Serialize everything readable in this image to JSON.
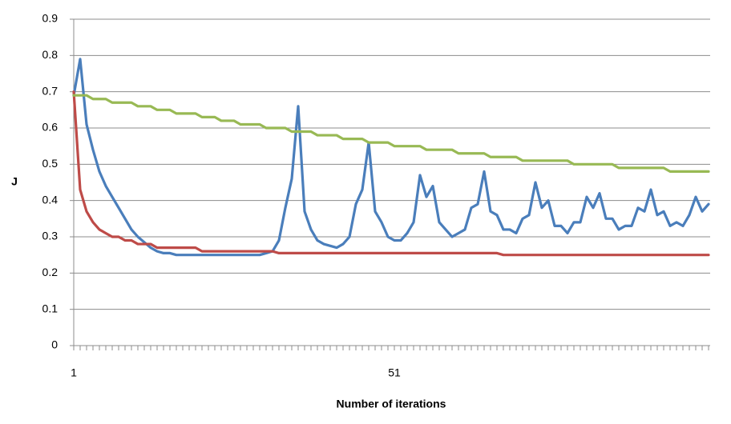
{
  "chart_data": {
    "type": "line",
    "ylabel": "J",
    "xlabel": "Number of iterations",
    "categories": [
      "1",
      null,
      null,
      null,
      null,
      null,
      null,
      null,
      null,
      null,
      null,
      null,
      null,
      null,
      null,
      null,
      null,
      null,
      null,
      null,
      null,
      null,
      null,
      null,
      null,
      null,
      null,
      null,
      null,
      null,
      null,
      null,
      null,
      null,
      null,
      null,
      null,
      null,
      null,
      null,
      null,
      null,
      null,
      null,
      null,
      null,
      null,
      null,
      null,
      null,
      "51",
      null,
      null,
      null,
      null,
      null,
      null,
      null,
      null,
      null,
      null,
      null,
      null,
      null,
      null,
      null,
      null,
      null,
      null,
      null,
      null,
      null,
      null,
      null,
      null,
      null,
      null,
      null,
      null,
      null,
      null,
      null,
      null,
      null,
      null,
      null,
      null,
      null,
      null,
      null,
      null,
      null,
      null,
      null,
      null,
      null,
      null,
      null,
      null,
      null
    ],
    "ylim": [
      0,
      0.9
    ],
    "yticks": [
      0,
      0.1,
      0.2,
      0.3,
      0.4,
      0.5,
      0.6,
      0.7,
      0.8,
      0.9
    ],
    "grid": true,
    "series": [
      {
        "color": "#4a7ebb",
        "values": [
          0.69,
          0.79,
          0.61,
          0.54,
          0.48,
          0.44,
          0.41,
          0.38,
          0.35,
          0.32,
          0.3,
          0.285,
          0.27,
          0.26,
          0.255,
          0.255,
          0.25,
          0.25,
          0.25,
          0.25,
          0.25,
          0.25,
          0.25,
          0.25,
          0.25,
          0.25,
          0.25,
          0.25,
          0.25,
          0.25,
          0.255,
          0.26,
          0.29,
          0.38,
          0.46,
          0.66,
          0.37,
          0.32,
          0.29,
          0.28,
          0.275,
          0.27,
          0.28,
          0.3,
          0.39,
          0.43,
          0.56,
          0.37,
          0.34,
          0.3,
          0.29,
          0.29,
          0.31,
          0.34,
          0.47,
          0.41,
          0.44,
          0.34,
          0.32,
          0.3,
          0.31,
          0.32,
          0.38,
          0.39,
          0.48,
          0.37,
          0.36,
          0.32,
          0.32,
          0.31,
          0.35,
          0.36,
          0.45,
          0.38,
          0.4,
          0.33,
          0.33,
          0.31,
          0.34,
          0.34,
          0.41,
          0.38,
          0.42,
          0.35,
          0.35,
          0.32,
          0.33,
          0.33,
          0.38,
          0.37,
          0.43,
          0.36,
          0.37,
          0.33,
          0.34,
          0.33,
          0.36,
          0.41,
          0.37,
          0.39
        ]
      },
      {
        "color": "#be4b48",
        "values": [
          0.7,
          0.43,
          0.37,
          0.34,
          0.32,
          0.31,
          0.3,
          0.3,
          0.29,
          0.29,
          0.28,
          0.28,
          0.28,
          0.27,
          0.27,
          0.27,
          0.27,
          0.27,
          0.27,
          0.27,
          0.26,
          0.26,
          0.26,
          0.26,
          0.26,
          0.26,
          0.26,
          0.26,
          0.26,
          0.26,
          0.26,
          0.26,
          0.255,
          0.255,
          0.255,
          0.255,
          0.255,
          0.255,
          0.255,
          0.255,
          0.255,
          0.255,
          0.255,
          0.255,
          0.255,
          0.255,
          0.255,
          0.255,
          0.255,
          0.255,
          0.255,
          0.255,
          0.255,
          0.255,
          0.255,
          0.255,
          0.255,
          0.255,
          0.255,
          0.255,
          0.255,
          0.255,
          0.255,
          0.255,
          0.255,
          0.255,
          0.255,
          0.25,
          0.25,
          0.25,
          0.25,
          0.25,
          0.25,
          0.25,
          0.25,
          0.25,
          0.25,
          0.25,
          0.25,
          0.25,
          0.25,
          0.25,
          0.25,
          0.25,
          0.25,
          0.25,
          0.25,
          0.25,
          0.25,
          0.25,
          0.25,
          0.25,
          0.25,
          0.25,
          0.25,
          0.25,
          0.25,
          0.25,
          0.25,
          0.25
        ]
      },
      {
        "color": "#98b954",
        "values": [
          0.69,
          0.69,
          0.69,
          0.68,
          0.68,
          0.68,
          0.67,
          0.67,
          0.67,
          0.67,
          0.66,
          0.66,
          0.66,
          0.65,
          0.65,
          0.65,
          0.64,
          0.64,
          0.64,
          0.64,
          0.63,
          0.63,
          0.63,
          0.62,
          0.62,
          0.62,
          0.61,
          0.61,
          0.61,
          0.61,
          0.6,
          0.6,
          0.6,
          0.6,
          0.59,
          0.59,
          0.59,
          0.59,
          0.58,
          0.58,
          0.58,
          0.58,
          0.57,
          0.57,
          0.57,
          0.57,
          0.56,
          0.56,
          0.56,
          0.56,
          0.55,
          0.55,
          0.55,
          0.55,
          0.55,
          0.54,
          0.54,
          0.54,
          0.54,
          0.54,
          0.53,
          0.53,
          0.53,
          0.53,
          0.53,
          0.52,
          0.52,
          0.52,
          0.52,
          0.52,
          0.51,
          0.51,
          0.51,
          0.51,
          0.51,
          0.51,
          0.51,
          0.51,
          0.5,
          0.5,
          0.5,
          0.5,
          0.5,
          0.5,
          0.5,
          0.49,
          0.49,
          0.49,
          0.49,
          0.49,
          0.49,
          0.49,
          0.49,
          0.48,
          0.48,
          0.48,
          0.48,
          0.48,
          0.48,
          0.48
        ]
      }
    ]
  }
}
